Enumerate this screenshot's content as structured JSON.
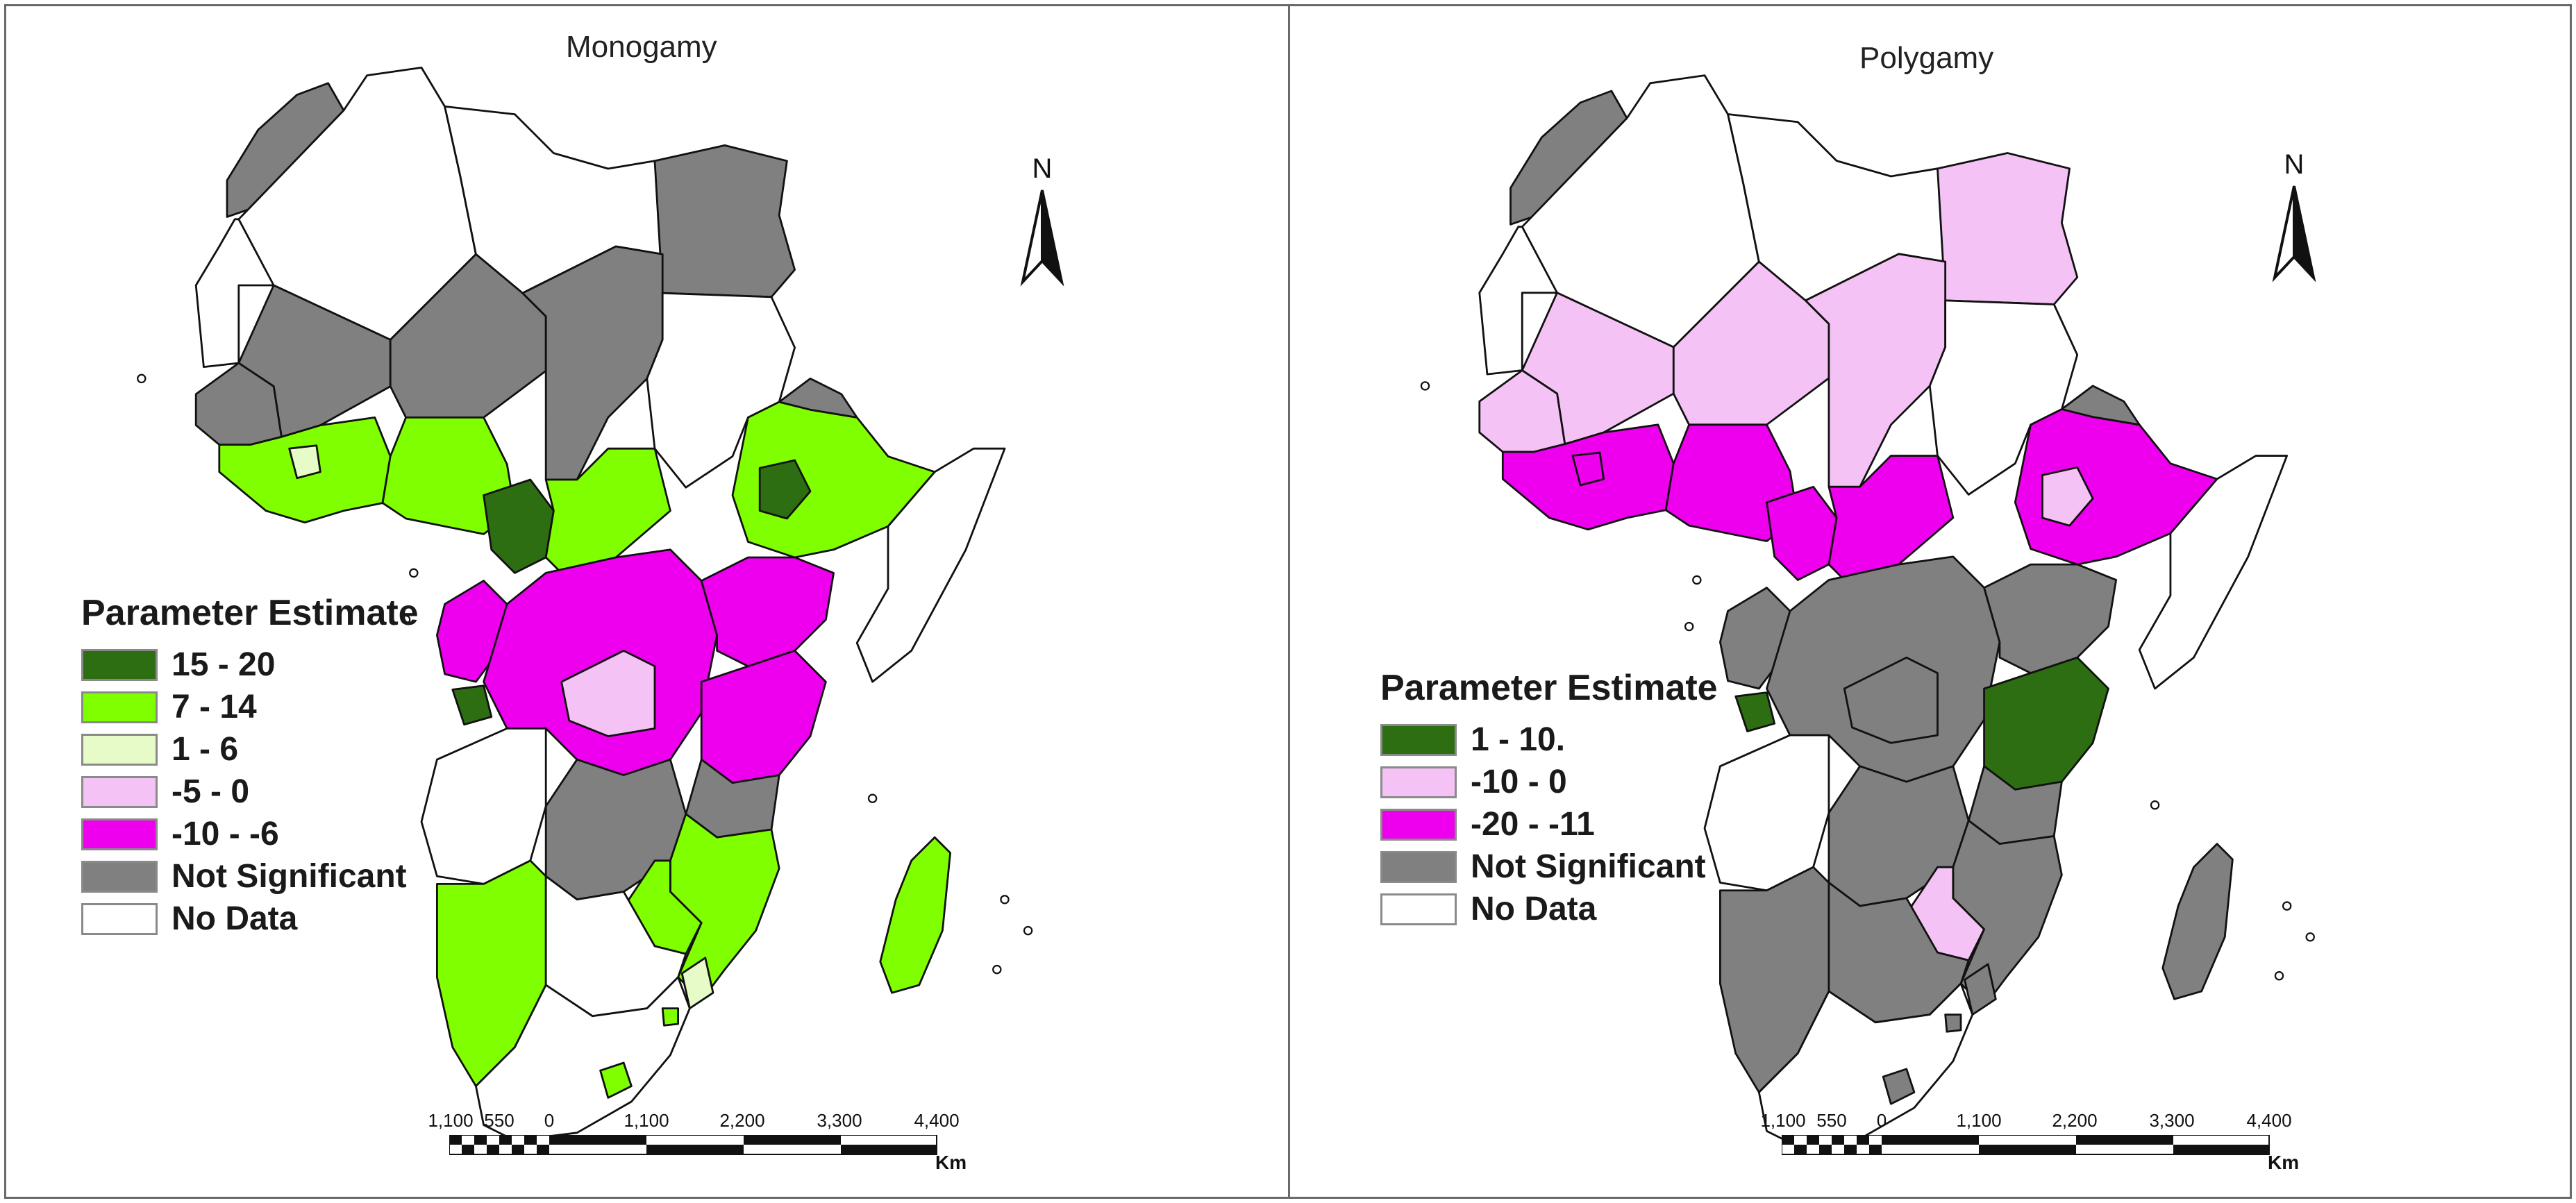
{
  "colors": {
    "dark_green": "#2e6e12",
    "bright_green": "#80ff00",
    "pale_green": "#e6fbc8",
    "light_pink": "#f4c2f4",
    "magenta": "#ee00ee",
    "gray": "#808080",
    "no_data": "#ffffff",
    "border": "#111111"
  },
  "maps": [
    {
      "title": "Monogamy",
      "legend": {
        "title": "Parameter Estimate",
        "items": [
          {
            "label": "15 - 20",
            "color": "#2e6e12"
          },
          {
            "label": "7 - 14",
            "color": "#80ff00"
          },
          {
            "label": "1 - 6",
            "color": "#e6fbc8"
          },
          {
            "label": "-5 - 0",
            "color": "#f4c2f4"
          },
          {
            "label": "-10 - -6",
            "color": "#ee00ee"
          },
          {
            "label": "Not Significant",
            "color": "#808080"
          },
          {
            "label": "No Data",
            "color": "#ffffff"
          }
        ]
      },
      "north_label": "N",
      "scale": {
        "ticks": [
          "1,100",
          "550",
          "0",
          "1,100",
          "2,200",
          "3,300",
          "4,400"
        ],
        "unit": "Km"
      },
      "region_classes": {
        "northwest": "#808080",
        "western_sahara": "#ffffff",
        "algeria": "#ffffff",
        "libya": "#ffffff",
        "egypt": "#808080",
        "mali": "#808080",
        "niger": "#808080",
        "chad": "#808080",
        "sudan": "#ffffff",
        "west_coast_north": "#808080",
        "west_coast": "#80ff00",
        "west_pale": "#e6fbc8",
        "nigeria": "#80ff00",
        "cameroon_north": "#2e6e12",
        "car": "#80ff00",
        "ethiopia": "#80ff00",
        "ethiopia_core": "#2e6e12",
        "eritrea": "#808080",
        "somalia": "#ffffff",
        "gabon": "#ee00ee",
        "congo_small": "#2e6e12",
        "drc": "#ee00ee",
        "drc_east": "#f4c2f4",
        "uganda_kenya": "#ee00ee",
        "tanzania": "#ee00ee",
        "tanzania_south": "#808080",
        "angola": "#ffffff",
        "zambia": "#808080",
        "mozambique": "#80ff00",
        "mozambique_south": "#e6fbc8",
        "malawi": "#80ff00",
        "namibia": "#80ff00",
        "botswana": "#ffffff",
        "south_africa": "#ffffff",
        "lesotho": "#80ff00",
        "madagascar": "#80ff00",
        "swaziland": "#80ff00"
      }
    },
    {
      "title": "Polygamy",
      "legend": {
        "title": "Parameter Estimate",
        "items": [
          {
            "label": "1 - 10.",
            "color": "#2e6e12"
          },
          {
            "label": "-10 - 0",
            "color": "#f4c2f4"
          },
          {
            "label": "-20 - -11",
            "color": "#ee00ee"
          },
          {
            "label": "Not Significant",
            "color": "#808080"
          },
          {
            "label": "No Data",
            "color": "#ffffff"
          }
        ]
      },
      "north_label": "N",
      "scale": {
        "ticks": [
          "1,100",
          "550",
          "0",
          "1,100",
          "2,200",
          "3,300",
          "4,400"
        ],
        "unit": "Km"
      },
      "region_classes": {
        "northwest": "#808080",
        "western_sahara": "#ffffff",
        "algeria": "#ffffff",
        "libya": "#ffffff",
        "egypt": "#f4c2f4",
        "mali": "#f4c2f4",
        "niger": "#f4c2f4",
        "chad": "#f4c2f4",
        "sudan": "#ffffff",
        "west_coast_north": "#f4c2f4",
        "west_coast": "#ee00ee",
        "west_pale": "#ee00ee",
        "nigeria": "#ee00ee",
        "cameroon_north": "#ee00ee",
        "car": "#ee00ee",
        "ethiopia": "#ee00ee",
        "ethiopia_core": "#f4c2f4",
        "eritrea": "#808080",
        "somalia": "#ffffff",
        "gabon": "#808080",
        "congo_small": "#2e6e12",
        "drc": "#808080",
        "drc_east": "#808080",
        "uganda_kenya": "#808080",
        "tanzania": "#2e6e12",
        "tanzania_south": "#808080",
        "angola": "#ffffff",
        "zambia": "#808080",
        "mozambique": "#808080",
        "mozambique_south": "#808080",
        "malawi": "#f4c2f4",
        "namibia": "#808080",
        "botswana": "#808080",
        "south_africa": "#ffffff",
        "lesotho": "#808080",
        "madagascar": "#808080",
        "swaziland": "#808080"
      }
    }
  ]
}
